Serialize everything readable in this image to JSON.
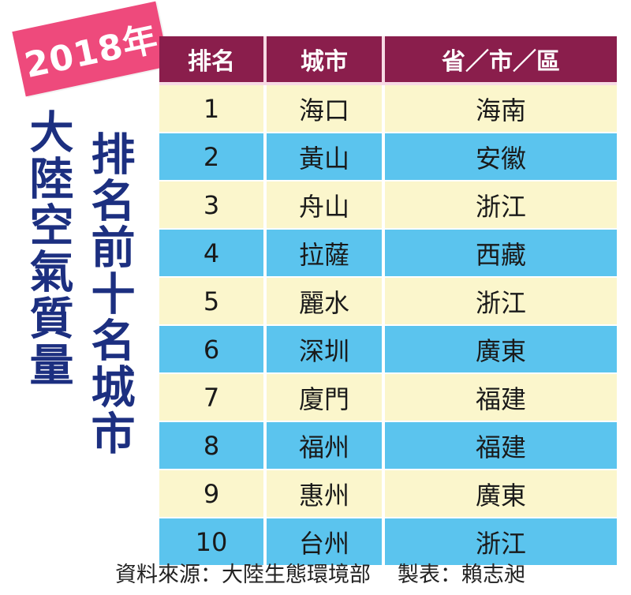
{
  "badge": {
    "year": "2018年"
  },
  "title": {
    "line1": "大陸空氣質量",
    "line2": "排名前十名城市"
  },
  "table": {
    "headers": {
      "rank": "排名",
      "city": "城市",
      "province": "省／市／區"
    },
    "rows": [
      {
        "rank": "1",
        "city": "海口",
        "province": "海南"
      },
      {
        "rank": "2",
        "city": "黃山",
        "province": "安徽"
      },
      {
        "rank": "3",
        "city": "舟山",
        "province": "浙江"
      },
      {
        "rank": "4",
        "city": "拉薩",
        "province": "西藏"
      },
      {
        "rank": "5",
        "city": "麗水",
        "province": "浙江"
      },
      {
        "rank": "6",
        "city": "深圳",
        "province": "廣東"
      },
      {
        "rank": "7",
        "city": "廈門",
        "province": "福建"
      },
      {
        "rank": "8",
        "city": "福州",
        "province": "福建"
      },
      {
        "rank": "9",
        "city": "惠州",
        "province": "廣東"
      },
      {
        "rank": "10",
        "city": "台州",
        "province": "浙江"
      }
    ]
  },
  "footer": {
    "source": "資料來源：大陸生態環境部",
    "credit": "製表：賴志昶"
  },
  "colors": {
    "badge": "#ee4a7c",
    "title": "#1c2f80",
    "header": "#8a1e4c",
    "row_light": "#fbf6cc",
    "row_blue": "#5bc4ee"
  },
  "chart_data": {
    "type": "table",
    "title": "2018年 大陸空氣質量 排名前十名城市",
    "columns": [
      "排名",
      "城市",
      "省／市／區"
    ],
    "rows": [
      [
        "1",
        "海口",
        "海南"
      ],
      [
        "2",
        "黃山",
        "安徽"
      ],
      [
        "3",
        "舟山",
        "浙江"
      ],
      [
        "4",
        "拉薩",
        "西藏"
      ],
      [
        "5",
        "麗水",
        "浙江"
      ],
      [
        "6",
        "深圳",
        "廣東"
      ],
      [
        "7",
        "廈門",
        "福建"
      ],
      [
        "8",
        "福州",
        "福建"
      ],
      [
        "9",
        "惠州",
        "廣東"
      ],
      [
        "10",
        "台州",
        "浙江"
      ]
    ]
  }
}
